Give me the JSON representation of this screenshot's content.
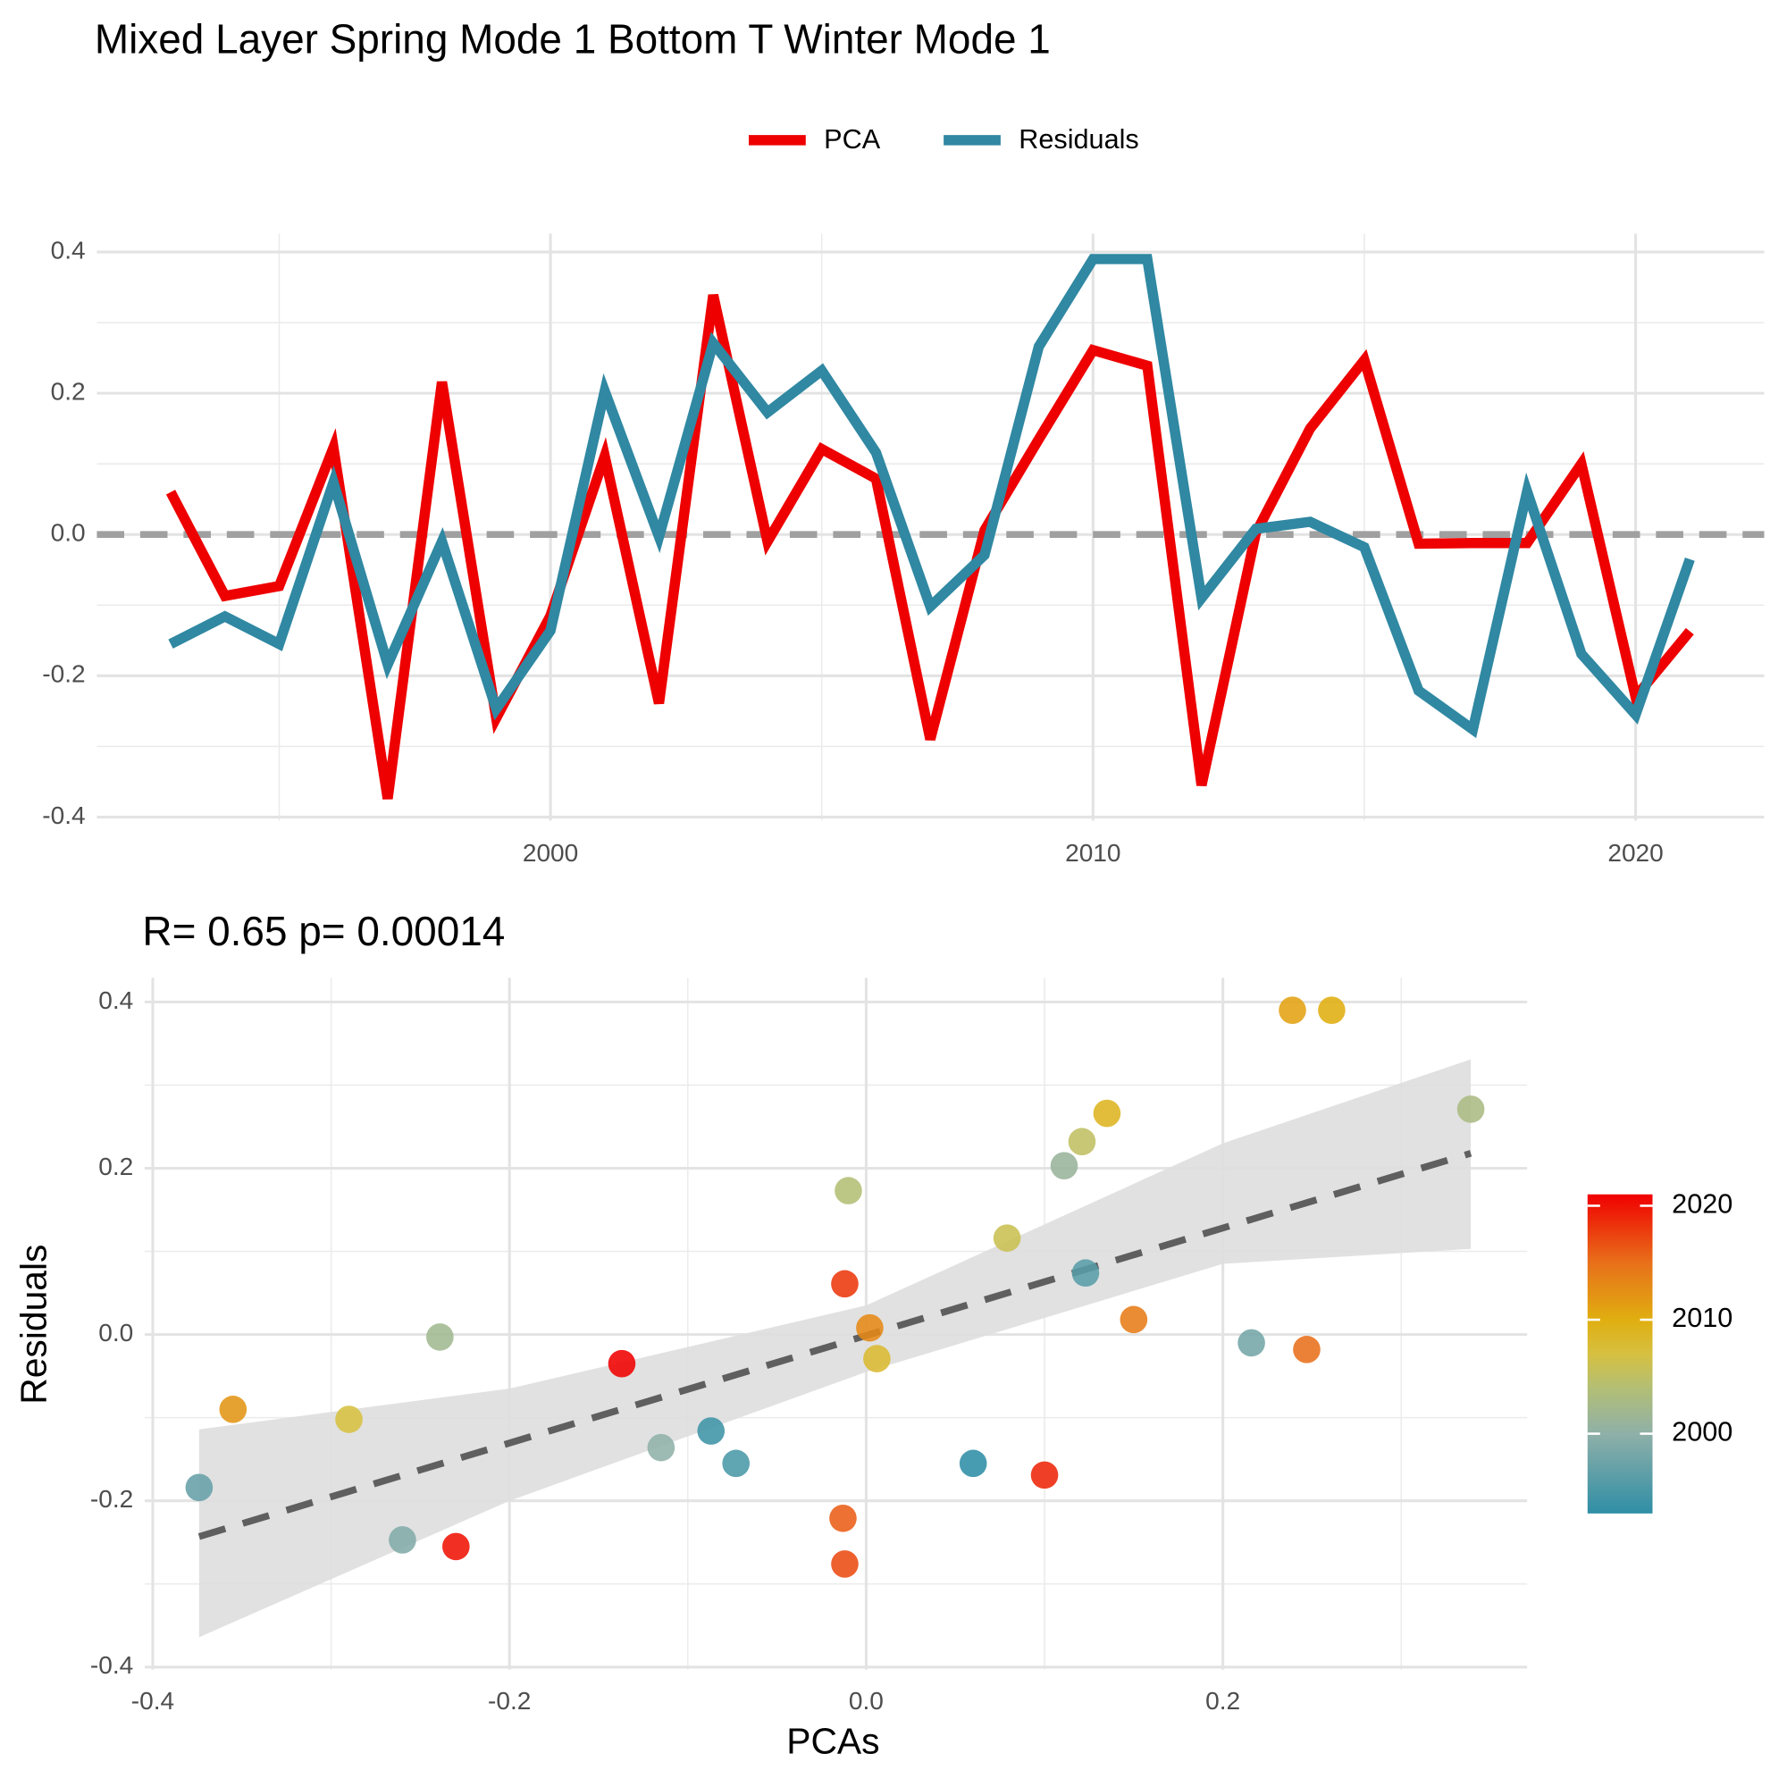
{
  "chart_data": [
    {
      "type": "line",
      "title": "Mixed Layer Spring Mode 1 Bottom T Winter Mode 1",
      "x": [
        1993,
        1994,
        1995,
        1996,
        1997,
        1998,
        1999,
        2000,
        2001,
        2002,
        2003,
        2004,
        2005,
        2006,
        2007,
        2008,
        2009,
        2010,
        2011,
        2012,
        2013,
        2014,
        2015,
        2016,
        2017,
        2018,
        2019,
        2020,
        2021
      ],
      "series": [
        {
          "name": "PCA",
          "color": "#ee0000",
          "values": [
            0.06,
            -0.087,
            -0.073,
            0.123,
            -0.374,
            0.216,
            -0.26,
            -0.115,
            0.111,
            -0.239,
            0.339,
            -0.01,
            0.121,
            0.079,
            -0.29,
            0.006,
            0.135,
            0.261,
            0.239,
            -0.355,
            0.002,
            0.15,
            0.247,
            -0.013,
            -0.012,
            -0.012,
            0.1,
            -0.23,
            -0.137
          ]
        },
        {
          "name": "Residuals",
          "color": "#3088a2",
          "values": [
            -0.155,
            -0.116,
            -0.155,
            0.074,
            -0.184,
            -0.01,
            -0.247,
            -0.136,
            0.203,
            -0.003,
            0.271,
            0.173,
            0.232,
            0.116,
            -0.102,
            -0.029,
            0.266,
            0.39,
            0.39,
            -0.09,
            0.008,
            0.018,
            -0.018,
            -0.221,
            -0.276,
            0.061,
            -0.169,
            -0.255,
            -0.035
          ]
        }
      ],
      "xlim": [
        1991.64,
        2022.37
      ],
      "xticks": [
        2000,
        2010,
        2020
      ],
      "minor_xticks": [
        1995,
        2005,
        2015
      ],
      "ylim": [
        -0.405,
        0.426
      ],
      "yticks": [
        -0.4,
        -0.2,
        {
          "value": 0,
          "label": "0.0"
        },
        0.2,
        0.4
      ],
      "minor_yticks": [
        -0.3,
        -0.1,
        0.1,
        0.3
      ],
      "hline": 0,
      "hline_color": "#a0a0a0",
      "grid": true,
      "legend": "top"
    },
    {
      "type": "scatter",
      "title": "R= 0.65  p= 0.00014",
      "xlabel": "PCAs",
      "ylabel": "Residuals",
      "x": [
        0.06,
        -0.087,
        -0.073,
        0.123,
        -0.374,
        0.216,
        -0.26,
        -0.115,
        0.111,
        -0.239,
        0.339,
        -0.01,
        0.121,
        0.079,
        -0.29,
        0.006,
        0.135,
        0.261,
        0.239,
        -0.355,
        0.002,
        0.15,
        0.247,
        -0.013,
        -0.012,
        -0.012,
        0.1,
        -0.23,
        -0.137
      ],
      "y": [
        -0.155,
        -0.116,
        -0.155,
        0.074,
        -0.184,
        -0.01,
        -0.247,
        -0.136,
        0.203,
        -0.003,
        0.271,
        0.173,
        0.232,
        0.116,
        -0.102,
        -0.029,
        0.266,
        0.39,
        0.39,
        -0.09,
        0.008,
        0.018,
        -0.018,
        -0.221,
        -0.276,
        0.061,
        -0.169,
        -0.255,
        -0.035
      ],
      "color_values": [
        1993,
        1994,
        1995,
        1996,
        1997,
        1998,
        1999,
        2000,
        2001,
        2002,
        2003,
        2004,
        2005,
        2006,
        2007,
        2008,
        2009,
        2010,
        2011,
        2012,
        2013,
        2014,
        2015,
        2016,
        2017,
        2018,
        2019,
        2020,
        2021
      ],
      "colorscale": [
        [
          1993,
          "#2f8ea6"
        ],
        [
          2000,
          "#8fb0a8"
        ],
        [
          2004,
          "#b3bf75"
        ],
        [
          2007,
          "#d6c040"
        ],
        [
          2010,
          "#e0ae10"
        ],
        [
          2015,
          "#e8701a"
        ],
        [
          2021,
          "#f00000"
        ]
      ],
      "colorbar_lim": [
        1993,
        2021
      ],
      "colorbar_ticks": [
        2000,
        2010,
        2020
      ],
      "fit": {
        "x": [
          -0.374,
          0.339
        ],
        "y": [
          -0.243,
          0.218
        ],
        "color": "#5f5f5f"
      },
      "band": {
        "x": [
          -0.374,
          -0.2,
          0,
          0.2,
          0.339
        ],
        "upper": [
          -0.114,
          -0.065,
          0.035,
          0.23,
          0.331
        ],
        "lower": [
          -0.364,
          -0.2,
          -0.045,
          0.085,
          0.103
        ],
        "color": "#dedede"
      },
      "xlim": [
        -0.4045,
        0.3706
      ],
      "xticks": [
        -0.4,
        -0.2,
        {
          "value": 0,
          "label": "0.0"
        },
        0.2
      ],
      "minor_xticks": [
        -0.3,
        -0.1,
        0.1,
        0.3
      ],
      "ylim": [
        -0.403,
        0.429
      ],
      "yticks": [
        -0.4,
        -0.2,
        {
          "value": 0,
          "label": "0.0"
        },
        0.2,
        0.4
      ],
      "minor_yticks": [
        -0.3,
        -0.1,
        0.1,
        0.3
      ],
      "grid": true,
      "legend": "right"
    }
  ]
}
